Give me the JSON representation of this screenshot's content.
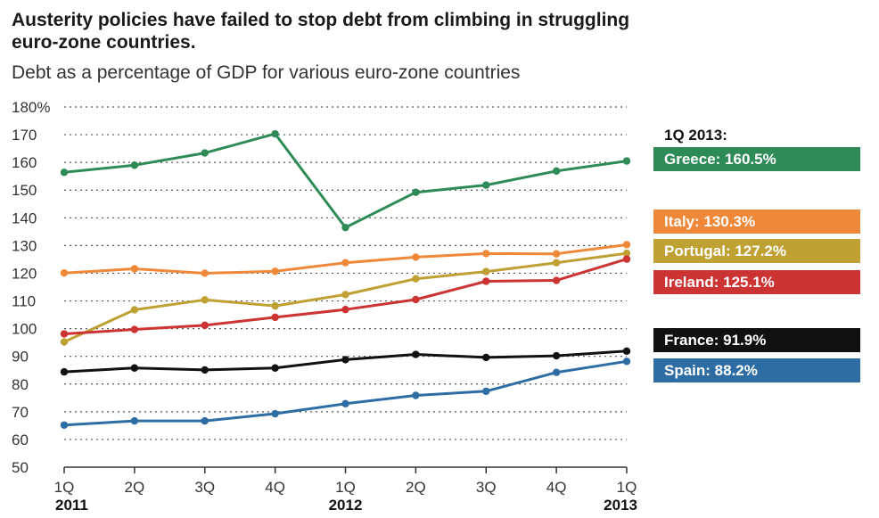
{
  "header": {
    "title": "Austerity policies have failed to stop debt from climbing in struggling euro-zone countries.",
    "subtitle": "Debt as a percentage of GDP for various euro-zone countries"
  },
  "legend": {
    "heading": "1Q 2013:",
    "items": [
      {
        "label": "Greece: 160.5%",
        "color": "#2e8b57"
      },
      {
        "label": "Italy: 130.3%",
        "color": "#f0883a"
      },
      {
        "label": "Portugal: 127.2%",
        "color": "#bfa032"
      },
      {
        "label": "Ireland: 125.1%",
        "color": "#cc3333"
      },
      {
        "label": "France: 91.9%",
        "color": "#111111"
      },
      {
        "label": "Spain: 88.2%",
        "color": "#2e6da4"
      }
    ]
  },
  "chart_data": {
    "type": "line",
    "x": [
      "1Q",
      "2Q",
      "3Q",
      "4Q",
      "1Q",
      "2Q",
      "3Q",
      "4Q",
      "1Q"
    ],
    "year_labels": [
      {
        "index": 0,
        "label": "2011"
      },
      {
        "index": 4,
        "label": "2012"
      },
      {
        "index": 8,
        "label": "2013"
      }
    ],
    "ylim": [
      50,
      180
    ],
    "yticks": [
      "50",
      "60",
      "70",
      "80",
      "90",
      "100",
      "110",
      "120",
      "130",
      "140",
      "150",
      "160",
      "170",
      "180%"
    ],
    "ytick_values": [
      50,
      60,
      70,
      80,
      90,
      100,
      110,
      120,
      130,
      140,
      150,
      160,
      170,
      180
    ],
    "grid": true,
    "series": [
      {
        "name": "Greece",
        "color": "#2e8b57",
        "values": [
          156.4,
          159,
          163.4,
          170.3,
          136.5,
          149.2,
          151.8,
          156.9,
          160.5
        ]
      },
      {
        "name": "Italy",
        "color": "#f0883a",
        "values": [
          120.1,
          121.6,
          120,
          120.7,
          123.8,
          125.8,
          127.1,
          127,
          130.3
        ]
      },
      {
        "name": "Portugal",
        "color": "#bfa032",
        "values": [
          95.2,
          106.8,
          110.4,
          108.2,
          112.3,
          118,
          120.6,
          123.8,
          127.2
        ]
      },
      {
        "name": "Ireland",
        "color": "#cc3333",
        "values": [
          98.1,
          99.7,
          101.2,
          104.1,
          106.9,
          110.5,
          117.1,
          117.4,
          125.1
        ]
      },
      {
        "name": "France",
        "color": "#111111",
        "values": [
          84.4,
          85.8,
          85.1,
          85.8,
          88.8,
          90.7,
          89.6,
          90.2,
          91.9
        ]
      },
      {
        "name": "Spain",
        "color": "#2e6da4",
        "values": [
          65.2,
          66.7,
          66.7,
          69.3,
          72.9,
          75.9,
          77.4,
          84.2,
          88.2
        ]
      }
    ]
  }
}
